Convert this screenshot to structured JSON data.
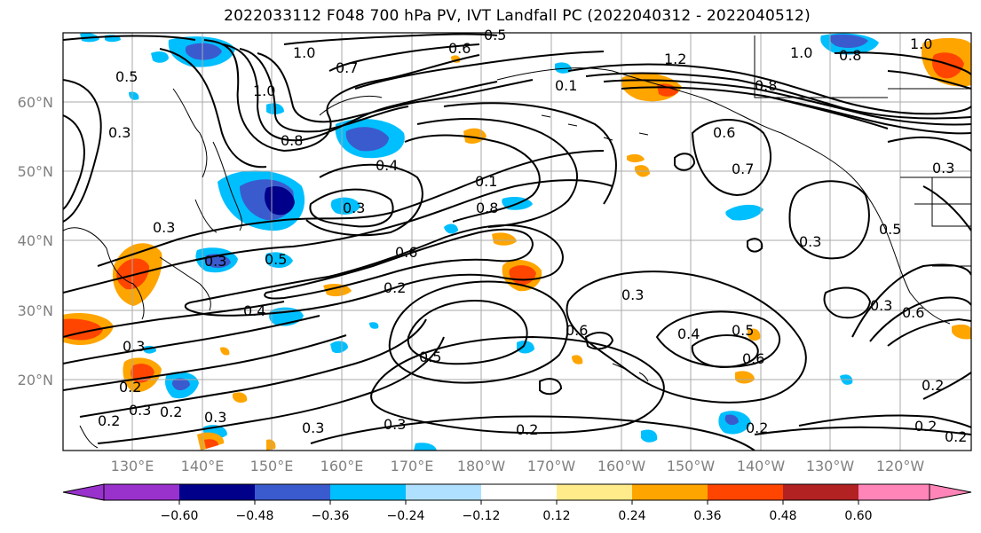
{
  "title": "2022033112 F048 700 hPa PV, IVT Landfall PC (2022040312 - 2022040512)",
  "lat_labels": [
    "60°N",
    "50°N",
    "40°N",
    "30°N",
    "20°N"
  ],
  "lon_labels": [
    "130°E",
    "140°E",
    "150°E",
    "160°E",
    "170°E",
    "180°W",
    "170°W",
    "160°W",
    "150°W",
    "140°W",
    "130°W",
    "120°W"
  ],
  "colorbar": {
    "ticks": [
      "−0.60",
      "−0.48",
      "−0.36",
      "−0.24",
      "−0.12",
      "0.12",
      "0.24",
      "0.36",
      "0.48",
      "0.60"
    ],
    "colors": [
      "#9932cc",
      "#00008b",
      "#3a5bcd",
      "#00bfff",
      "#b0e0ff",
      "#ffffff",
      "#ffeb8a",
      "#ffa500",
      "#ff4500",
      "#b22222",
      "#ff85b8"
    ]
  },
  "contour_labels": [
    "1.0",
    "0.6",
    "0.5",
    "1.0",
    "0.8",
    "1.0",
    "0.7",
    "1.0",
    "0.5",
    "1.2",
    "0.1",
    "0.8",
    "0.3",
    "0.8",
    "0.4",
    "0.6",
    "0.7",
    "0.1",
    "0.8",
    "0.3",
    "0.6",
    "0.5",
    "0.3",
    "0.3",
    "0.4",
    "0.2",
    "0.3",
    "0.5",
    "0.4",
    "0.5",
    "0.6",
    "0.6",
    "0.3",
    "0.5",
    "0.3",
    "0.2",
    "0.3",
    "0.2",
    "0.3",
    "0.2",
    "0.3",
    "0.2",
    "0.2",
    "0.3",
    "0.2",
    "0.6",
    "0.3",
    "0.2",
    "0.3",
    "0.2"
  ]
}
